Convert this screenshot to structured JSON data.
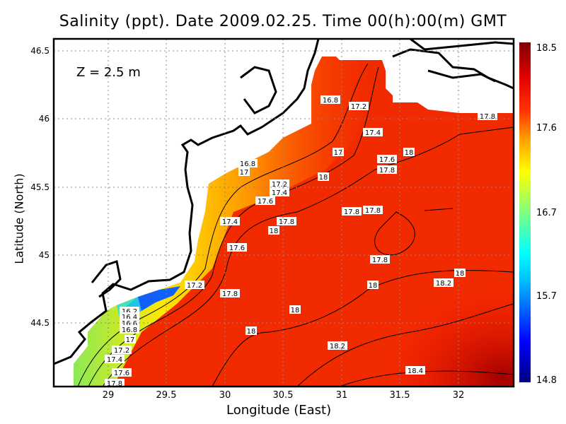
{
  "title": "Salinity (ppt). Date 2009.02.25. Time 00(h):00(m) GMT",
  "depth_label": "Z = 2.5 m",
  "x_axis": {
    "label": "Longitude (East)",
    "ticks": [
      "29",
      "29.5",
      "30",
      "30.5",
      "31",
      "31.5",
      "32"
    ],
    "range": [
      28.53,
      32.47
    ]
  },
  "y_axis": {
    "label": "Latitude (North)",
    "ticks": [
      "44.5",
      "45",
      "45.5",
      "46",
      "46.5"
    ],
    "range": [
      44.05,
      46.59
    ]
  },
  "colorbar": {
    "ticks": [
      "18.5",
      "17.6",
      "16.7",
      "15.7",
      "14.8"
    ],
    "range": [
      14.8,
      18.5
    ],
    "colors": [
      "#00007f",
      "#0000ff",
      "#00bfff",
      "#00ffff",
      "#7fff7f",
      "#ffff00",
      "#ff9900",
      "#ff3300",
      "#ff0000",
      "#7f0000"
    ]
  },
  "grid": "dotted",
  "contour_labels": [
    "16.8",
    "17.2",
    "17.4",
    "17",
    "18",
    "17.6",
    "17.8",
    "16.8",
    "17",
    "18",
    "17.2",
    "17.4",
    "17.6",
    "17.8",
    "17.8",
    "17.4",
    "17.8",
    "18",
    "17.6",
    "17.8",
    "18",
    "18.2",
    "18",
    "17.2",
    "17.8",
    "18",
    "16.2",
    "16.4",
    "16.6",
    "16.8",
    "17",
    "17.2",
    "17.4",
    "17.6",
    "17.8",
    "18",
    "18.2",
    "18.4",
    "17.8"
  ]
}
